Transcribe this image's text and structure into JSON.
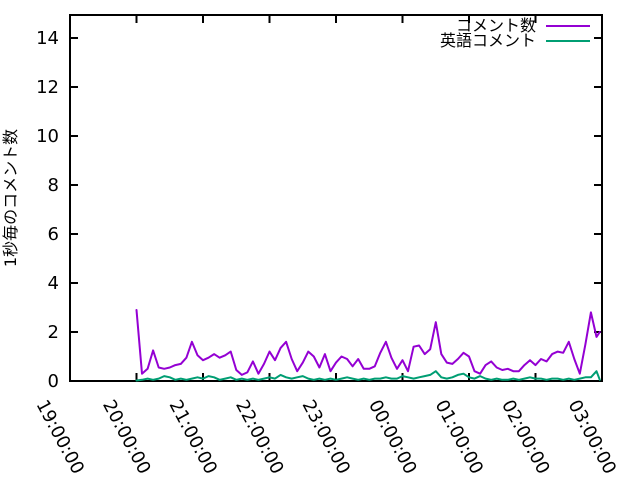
{
  "colors": {
    "background": "#ffffff",
    "plot_border": "#000000",
    "series_comments": "#9400d3",
    "series_english": "#009e73"
  },
  "chart_data": {
    "type": "line",
    "title": "",
    "xlabel": "",
    "ylabel": "1秒毎のコメント数",
    "grid": false,
    "legend_position": "top-right-inside",
    "x_axis": {
      "tick_labels": [
        "19:00:00",
        "20:00:00",
        "21:00:00",
        "22:00:00",
        "23:00:00",
        "00:00:00",
        "01:00:00",
        "02:00:00",
        "03:00:00"
      ],
      "range_minutes": [
        0,
        480
      ],
      "note": "x_minutes_after_1900 = minutes after 19:00:00"
    },
    "y_axis": {
      "ticks": [
        0,
        2,
        4,
        6,
        8,
        10,
        12,
        14
      ],
      "range": [
        0,
        14.94
      ]
    },
    "x_minutes_after_1900": [
      60,
      65,
      70,
      75,
      80,
      85,
      90,
      95,
      100,
      105,
      110,
      115,
      120,
      125,
      130,
      135,
      140,
      145,
      150,
      155,
      160,
      165,
      170,
      175,
      180,
      185,
      190,
      195,
      200,
      205,
      210,
      215,
      220,
      225,
      230,
      235,
      240,
      245,
      250,
      255,
      260,
      265,
      270,
      275,
      280,
      285,
      290,
      295,
      300,
      305,
      310,
      315,
      320,
      325,
      330,
      335,
      340,
      345,
      350,
      355,
      360,
      365,
      370,
      375,
      380,
      385,
      390,
      395,
      400,
      405,
      410,
      415,
      420,
      425,
      430,
      435,
      440,
      445,
      450,
      455,
      460,
      465,
      470,
      475,
      478
    ],
    "series": [
      {
        "name": "コメント数",
        "color": "#9400d3",
        "values": [
          2.9,
          0.3,
          0.5,
          1.25,
          0.55,
          0.5,
          0.55,
          0.65,
          0.7,
          0.95,
          1.6,
          1.05,
          0.85,
          0.95,
          1.1,
          0.95,
          1.05,
          1.2,
          0.45,
          0.25,
          0.35,
          0.8,
          0.3,
          0.7,
          1.2,
          0.85,
          1.35,
          1.6,
          0.9,
          0.4,
          0.75,
          1.2,
          1.0,
          0.55,
          1.1,
          0.4,
          0.75,
          1.0,
          0.9,
          0.6,
          0.9,
          0.5,
          0.5,
          0.6,
          1.15,
          1.6,
          0.95,
          0.5,
          0.85,
          0.4,
          1.4,
          1.45,
          1.1,
          1.3,
          2.4,
          1.1,
          0.75,
          0.7,
          0.9,
          1.15,
          1.0,
          0.4,
          0.3,
          0.65,
          0.8,
          0.55,
          0.45,
          0.5,
          0.4,
          0.4,
          0.65,
          0.85,
          0.65,
          0.9,
          0.8,
          1.1,
          1.2,
          1.15,
          1.6,
          0.9,
          0.3,
          1.5,
          2.8,
          1.8,
          2.0
        ]
      },
      {
        "name": "英語コメント",
        "color": "#009e73",
        "values": [
          0.02,
          0.05,
          0.1,
          0.05,
          0.1,
          0.2,
          0.15,
          0.05,
          0.1,
          0.05,
          0.1,
          0.15,
          0.1,
          0.2,
          0.15,
          0.05,
          0.1,
          0.15,
          0.05,
          0.1,
          0.05,
          0.1,
          0.05,
          0.1,
          0.15,
          0.1,
          0.25,
          0.15,
          0.1,
          0.15,
          0.2,
          0.1,
          0.05,
          0.1,
          0.05,
          0.1,
          0.05,
          0.1,
          0.15,
          0.1,
          0.05,
          0.1,
          0.05,
          0.1,
          0.1,
          0.15,
          0.1,
          0.1,
          0.2,
          0.15,
          0.1,
          0.15,
          0.2,
          0.25,
          0.4,
          0.15,
          0.1,
          0.15,
          0.25,
          0.3,
          0.15,
          0.1,
          0.2,
          0.1,
          0.05,
          0.1,
          0.05,
          0.05,
          0.1,
          0.05,
          0.1,
          0.15,
          0.1,
          0.1,
          0.05,
          0.1,
          0.1,
          0.05,
          0.1,
          0.05,
          0.1,
          0.15,
          0.15,
          0.4,
          0.05
        ]
      }
    ]
  }
}
